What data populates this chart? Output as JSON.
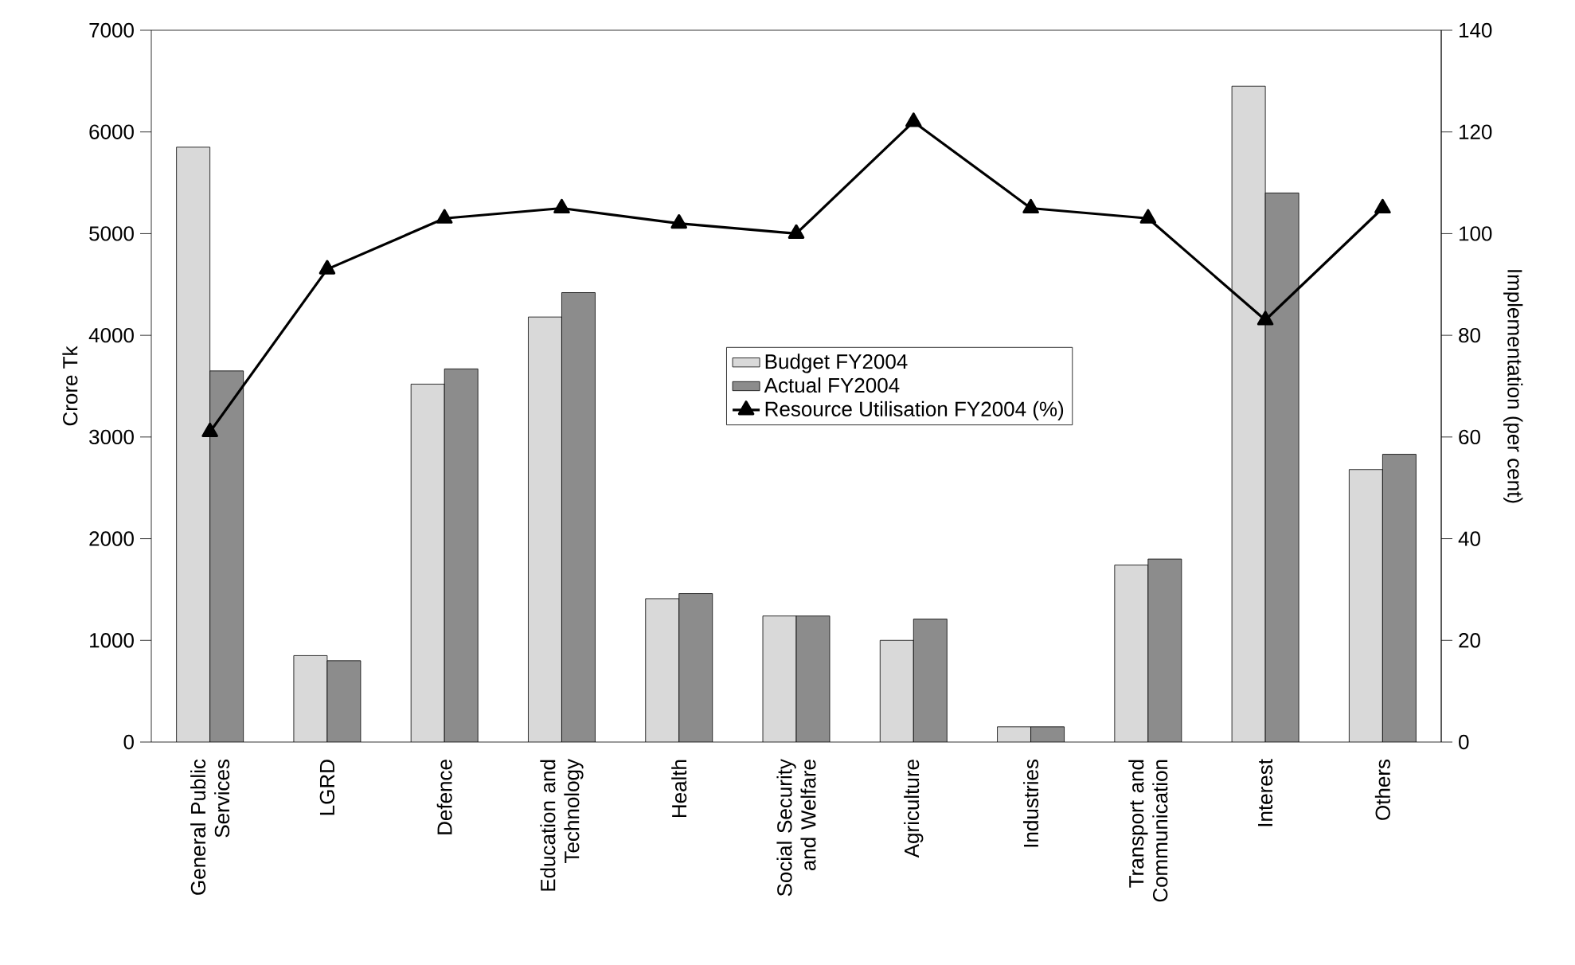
{
  "chart_data": {
    "type": "bar",
    "categories": [
      "General Public Services",
      "LGRD",
      "Defence",
      "Education and Technology",
      "Health",
      "Social Security and Welfare",
      "Agriculture",
      "Industries",
      "Transport and Communication",
      "Interest",
      "Others"
    ],
    "series": [
      {
        "name": "Budget FY2004",
        "color": "#d9d9d9",
        "values": [
          5850,
          850,
          3520,
          4180,
          1410,
          1240,
          1000,
          150,
          1740,
          6450,
          2680
        ]
      },
      {
        "name": "Actual FY2004",
        "color": "#8c8c8c",
        "values": [
          3650,
          800,
          3670,
          4420,
          1460,
          1240,
          1210,
          150,
          1800,
          5400,
          2830
        ]
      },
      {
        "name": "Resource Utilisation FY2004 (%)",
        "type": "line",
        "axis": "y2",
        "color": "#000000",
        "values": [
          61,
          93,
          103,
          105,
          102,
          100,
          122,
          105,
          103,
          83,
          105
        ]
      }
    ],
    "ylabel": "Crore Tk",
    "y2label": "Implementation (per cent)",
    "ylim": [
      0,
      7000
    ],
    "yticks": [
      0,
      1000,
      2000,
      3000,
      4000,
      5000,
      6000,
      7000
    ],
    "y2lim": [
      0,
      140
    ],
    "y2ticks": [
      0,
      20,
      40,
      60,
      80,
      100,
      120,
      140
    ],
    "legend": "center",
    "grid": false,
    "marker": "triangle",
    "line_style": "solid"
  }
}
